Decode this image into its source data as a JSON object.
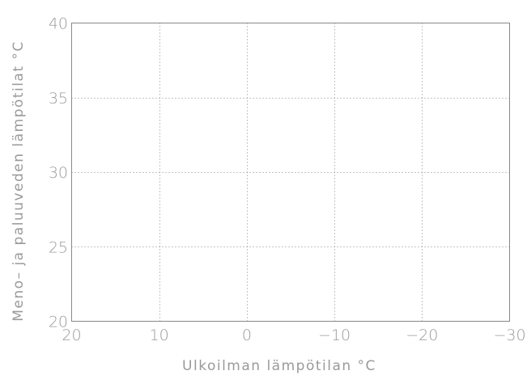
{
  "chart_data": {
    "type": "line",
    "title": "",
    "xlabel": "Ulkoilman lämpötilan °C",
    "ylabel": "Meno– ja paluuveden lämpötilat °C",
    "xlim": [
      20,
      -30
    ],
    "ylim": [
      20,
      40
    ],
    "x_ticks": [
      20,
      10,
      0,
      -10,
      -20,
      -30
    ],
    "x_tick_labels": [
      "20",
      "10",
      "0",
      "−10",
      "−20",
      "−30"
    ],
    "y_ticks": [
      20,
      25,
      30,
      35,
      40
    ],
    "y_tick_labels": [
      "20",
      "25",
      "30",
      "35",
      "40"
    ],
    "grid": true,
    "series": []
  }
}
